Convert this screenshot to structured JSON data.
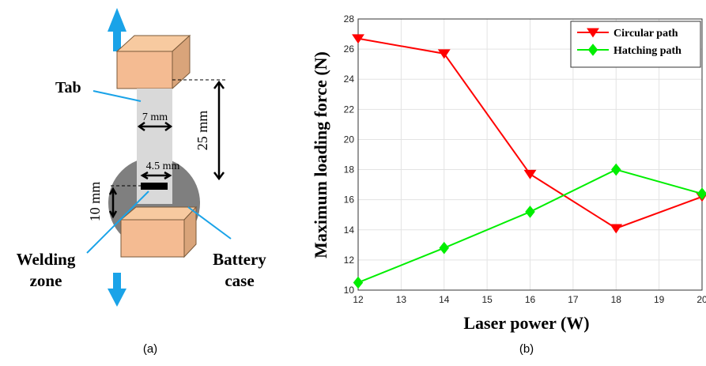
{
  "diagram": {
    "tab": "Tab",
    "width_top": "7 mm",
    "length": "25 mm",
    "width_weld": "4.5 mm",
    "depth": "10 mm",
    "welding_zone": [
      "Welding",
      "zone"
    ],
    "battery_case": [
      "Battery",
      "case"
    ],
    "caption": "(a)"
  },
  "chart_data": {
    "type": "line",
    "caption": "(b)",
    "x_label": "Laser power (W)",
    "y_label": "Maximum loading force (N)",
    "x": [
      12,
      14,
      16,
      18,
      20
    ],
    "series": [
      {
        "name": "Circular path",
        "color": "#ff0000",
        "marker": "triangle-down",
        "values": [
          26.7,
          25.7,
          17.7,
          14.1,
          16.2
        ]
      },
      {
        "name": "Hatching path",
        "color": "#00ee00",
        "marker": "diamond",
        "values": [
          10.5,
          12.8,
          15.2,
          18.0,
          16.4
        ]
      }
    ],
    "xlim": [
      12,
      20
    ],
    "xticks": [
      12,
      13,
      14,
      15,
      16,
      17,
      18,
      19,
      20
    ],
    "ylim": [
      10,
      28
    ],
    "yticks": [
      10,
      12,
      14,
      16,
      18,
      20,
      22,
      24,
      26,
      28
    ],
    "grid": true,
    "legend": "upper right"
  }
}
